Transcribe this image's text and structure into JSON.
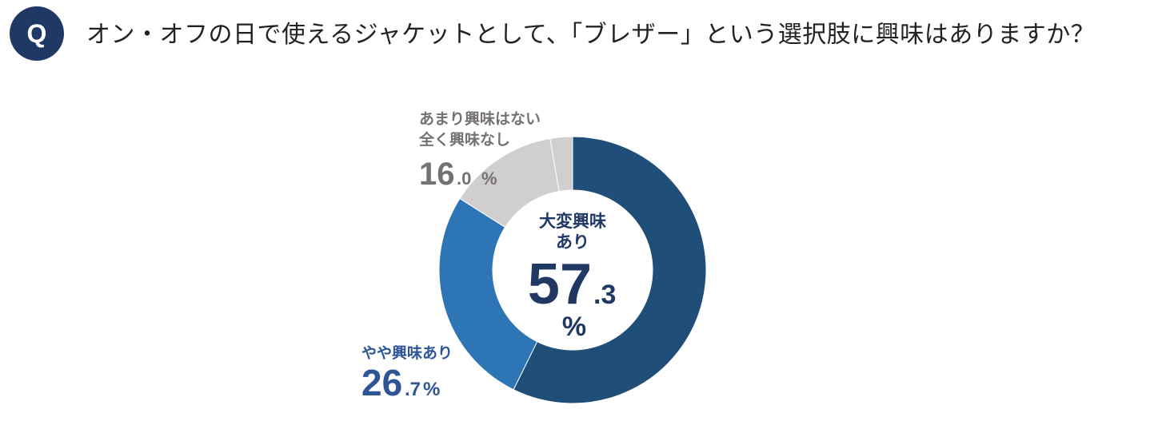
{
  "question": {
    "badge": "Q",
    "text": "オン・オフの日で使えるジャケットとして、「ブレザー」という選択肢に興味はありますか？"
  },
  "chart_data": {
    "type": "pie",
    "variant": "donut",
    "categories": [
      "大変興味あり",
      "やや興味あり",
      "あまり興味はない",
      "全く興味なし"
    ],
    "values": [
      57.3,
      26.7,
      13.3,
      2.7
    ],
    "unit": "%",
    "colors": [
      "#1f4e79",
      "#2e75b6",
      "#d0cece",
      "#d0cece"
    ],
    "labels": [
      {
        "lines": [
          "大変興味",
          "あり"
        ],
        "int": "57",
        "dec": ".3",
        "pct": "%",
        "color": "#1f3864"
      },
      {
        "lines": [
          "やや興味あり"
        ],
        "int": "26",
        "dec": ".7",
        "pct": "%",
        "color": "#2f5597"
      },
      {
        "lines": [
          "あまり興味はない",
          "全く興味なし"
        ],
        "int": "16",
        "dec": ".0",
        "pct": "%",
        "color": "#767171"
      }
    ]
  }
}
